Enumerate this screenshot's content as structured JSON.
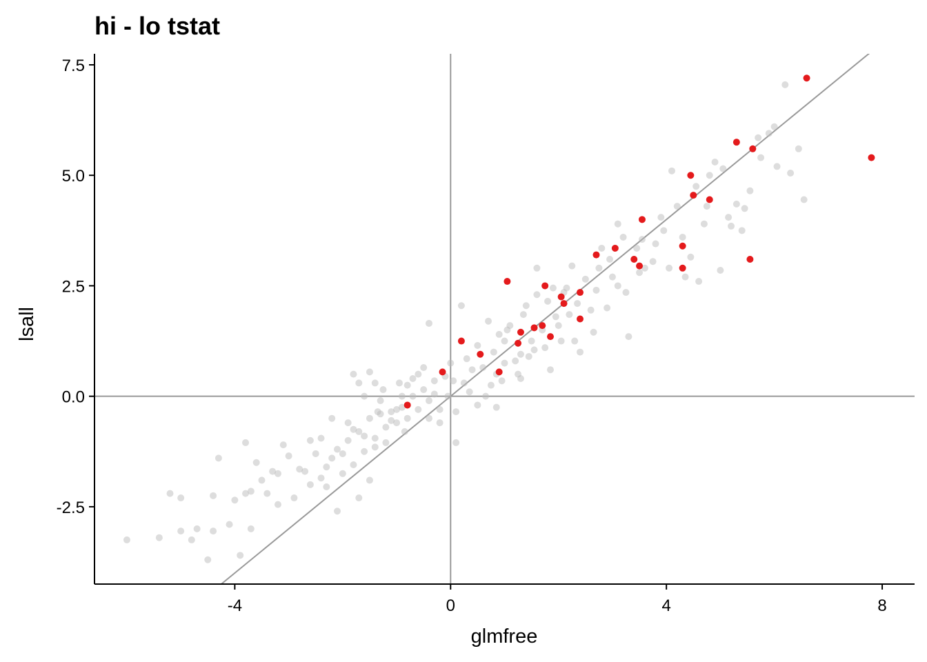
{
  "chart_data": {
    "type": "scatter",
    "title": "hi - lo tstat",
    "xlabel": "glmfree",
    "ylabel": "lsall",
    "xlim": [
      -6.6,
      8.6
    ],
    "ylim": [
      -4.25,
      7.75
    ],
    "x_ticks": [
      -4,
      0,
      4,
      8
    ],
    "x_tick_labels": [
      "-4",
      "0",
      "4",
      "8"
    ],
    "y_ticks": [
      -2.5,
      0.0,
      2.5,
      5.0,
      7.5
    ],
    "y_tick_labels": [
      "-2.5",
      "0.0",
      "2.5",
      "5.0",
      "7.5"
    ],
    "grid": false,
    "reference_lines": [
      {
        "type": "vertical",
        "x": 0,
        "color": "#999999"
      },
      {
        "type": "horizontal",
        "y": 0,
        "color": "#999999"
      },
      {
        "type": "identity",
        "slope": 1,
        "intercept": 0,
        "color": "#999999"
      }
    ],
    "series": [
      {
        "color": "#bbbbbb",
        "opacity": 0.5,
        "points": [
          [
            -6.0,
            -3.25
          ],
          [
            -5.4,
            -3.2
          ],
          [
            -5.2,
            -2.2
          ],
          [
            -5.0,
            -2.3
          ],
          [
            -5.0,
            -3.05
          ],
          [
            -4.8,
            -3.25
          ],
          [
            -4.7,
            -3.0
          ],
          [
            -4.5,
            -3.7
          ],
          [
            -4.4,
            -2.25
          ],
          [
            -4.4,
            -3.05
          ],
          [
            -4.3,
            -1.4
          ],
          [
            -4.1,
            -2.9
          ],
          [
            -4.0,
            -2.35
          ],
          [
            -3.9,
            -3.6
          ],
          [
            -3.8,
            -1.05
          ],
          [
            -3.8,
            -2.2
          ],
          [
            -3.7,
            -2.15
          ],
          [
            -3.7,
            -3.0
          ],
          [
            -3.6,
            -1.5
          ],
          [
            -3.5,
            -1.9
          ],
          [
            -3.4,
            -2.2
          ],
          [
            -3.3,
            -1.7
          ],
          [
            -3.2,
            -1.75
          ],
          [
            -3.2,
            -2.45
          ],
          [
            -3.1,
            -1.1
          ],
          [
            -3.0,
            -1.35
          ],
          [
            -2.9,
            -2.3
          ],
          [
            -2.8,
            -1.65
          ],
          [
            -2.7,
            -1.7
          ],
          [
            -2.6,
            -1.0
          ],
          [
            -2.6,
            -2.0
          ],
          [
            -2.5,
            -1.3
          ],
          [
            -2.4,
            -0.95
          ],
          [
            -2.4,
            -1.85
          ],
          [
            -2.3,
            -1.6
          ],
          [
            -2.3,
            -2.05
          ],
          [
            -2.2,
            -0.5
          ],
          [
            -2.2,
            -1.4
          ],
          [
            -2.1,
            -1.2
          ],
          [
            -2.1,
            -2.6
          ],
          [
            -2.0,
            -1.3
          ],
          [
            -2.0,
            -1.75
          ],
          [
            -1.9,
            -0.6
          ],
          [
            -1.9,
            -1.0
          ],
          [
            -1.8,
            -0.75
          ],
          [
            -1.8,
            -1.55
          ],
          [
            -1.7,
            -0.8
          ],
          [
            -1.7,
            -2.3
          ],
          [
            -1.6,
            -0.9
          ],
          [
            -1.6,
            -1.25
          ],
          [
            -1.5,
            -0.5
          ],
          [
            -1.5,
            -1.9
          ],
          [
            -1.4,
            -0.95
          ],
          [
            -1.4,
            -1.15
          ],
          [
            -1.8,
            0.5
          ],
          [
            -1.7,
            0.3
          ],
          [
            -1.6,
            0.0
          ],
          [
            -1.5,
            0.55
          ],
          [
            -1.4,
            0.3
          ],
          [
            -1.3,
            -0.1
          ],
          [
            -1.3,
            -0.4
          ],
          [
            -1.2,
            -0.7
          ],
          [
            -1.2,
            -1.05
          ],
          [
            -1.1,
            -0.35
          ],
          [
            -1.1,
            -0.55
          ],
          [
            -1.0,
            -0.3
          ],
          [
            -1.0,
            -0.6
          ],
          [
            -0.9,
            0.0
          ],
          [
            -0.9,
            -0.25
          ],
          [
            -0.85,
            -0.8
          ],
          [
            -0.8,
            0.25
          ],
          [
            -0.8,
            -0.5
          ],
          [
            -0.7,
            0.4
          ],
          [
            -0.7,
            0.0
          ],
          [
            -0.6,
            0.5
          ],
          [
            -0.6,
            -0.3
          ],
          [
            -0.5,
            0.65
          ],
          [
            -0.5,
            0.15
          ],
          [
            -0.4,
            -0.1
          ],
          [
            -0.4,
            -0.5
          ],
          [
            -0.3,
            0.35
          ],
          [
            -0.3,
            0.05
          ],
          [
            -0.2,
            -0.3
          ],
          [
            -0.2,
            -0.6
          ],
          [
            -0.1,
            0.45
          ],
          [
            -0.05,
            0.0
          ],
          [
            0.0,
            0.75
          ],
          [
            0.05,
            0.35
          ],
          [
            0.1,
            -0.35
          ],
          [
            0.1,
            -1.05
          ],
          [
            -0.4,
            1.65
          ],
          [
            0.2,
            2.05
          ],
          [
            0.25,
            0.3
          ],
          [
            0.3,
            0.85
          ],
          [
            0.4,
            0.6
          ],
          [
            0.5,
            1.15
          ],
          [
            0.5,
            -0.2
          ],
          [
            0.6,
            0.65
          ],
          [
            0.65,
            0.0
          ],
          [
            0.7,
            1.7
          ],
          [
            0.75,
            0.25
          ],
          [
            0.8,
            1.0
          ],
          [
            0.85,
            0.5
          ],
          [
            0.85,
            -0.25
          ],
          [
            0.9,
            1.4
          ],
          [
            1.0,
            1.25
          ],
          [
            1.0,
            0.75
          ],
          [
            1.05,
            1.5
          ],
          [
            1.1,
            1.6
          ],
          [
            1.2,
            0.8
          ],
          [
            1.25,
            0.5
          ],
          [
            1.3,
            0.95
          ],
          [
            1.35,
            1.85
          ],
          [
            1.4,
            2.05
          ],
          [
            1.45,
            0.9
          ],
          [
            1.5,
            1.25
          ],
          [
            1.6,
            2.3
          ],
          [
            1.6,
            2.9
          ],
          [
            1.7,
            1.5
          ],
          [
            1.75,
            1.1
          ],
          [
            1.8,
            2.15
          ],
          [
            1.85,
            0.6
          ],
          [
            1.9,
            2.45
          ],
          [
            2.0,
            1.6
          ],
          [
            2.05,
            1.25
          ],
          [
            2.1,
            2.35
          ],
          [
            2.2,
            1.85
          ],
          [
            2.25,
            2.95
          ],
          [
            2.3,
            1.25
          ],
          [
            2.35,
            2.1
          ],
          [
            2.4,
            1.0
          ],
          [
            2.5,
            2.65
          ],
          [
            2.6,
            1.95
          ],
          [
            2.65,
            1.45
          ],
          [
            2.7,
            2.4
          ],
          [
            2.8,
            3.35
          ],
          [
            2.9,
            2.0
          ],
          [
            2.95,
            3.1
          ],
          [
            3.0,
            2.7
          ],
          [
            3.1,
            3.9
          ],
          [
            3.1,
            2.5
          ],
          [
            3.2,
            3.6
          ],
          [
            3.25,
            2.35
          ],
          [
            3.3,
            1.35
          ],
          [
            3.4,
            3.1
          ],
          [
            3.5,
            2.8
          ],
          [
            3.55,
            3.55
          ],
          [
            3.6,
            2.9
          ],
          [
            3.75,
            3.05
          ],
          [
            3.8,
            3.45
          ],
          [
            3.9,
            4.05
          ],
          [
            3.95,
            3.75
          ],
          [
            4.05,
            2.9
          ],
          [
            4.1,
            5.1
          ],
          [
            4.2,
            4.3
          ],
          [
            4.3,
            3.6
          ],
          [
            4.35,
            2.7
          ],
          [
            4.45,
            3.15
          ],
          [
            4.55,
            4.75
          ],
          [
            4.6,
            2.6
          ],
          [
            4.7,
            3.9
          ],
          [
            4.75,
            4.3
          ],
          [
            4.8,
            5.0
          ],
          [
            4.9,
            5.3
          ],
          [
            5.0,
            2.85
          ],
          [
            5.05,
            5.15
          ],
          [
            5.15,
            4.05
          ],
          [
            5.2,
            3.85
          ],
          [
            5.3,
            4.35
          ],
          [
            5.4,
            3.75
          ],
          [
            5.45,
            4.25
          ],
          [
            5.55,
            4.65
          ],
          [
            5.7,
            5.85
          ],
          [
            5.75,
            5.4
          ],
          [
            5.9,
            5.95
          ],
          [
            6.0,
            6.1
          ],
          [
            6.2,
            7.05
          ],
          [
            6.3,
            5.05
          ],
          [
            6.45,
            5.6
          ],
          [
            6.55,
            4.45
          ],
          [
            6.05,
            5.2
          ],
          [
            -1.35,
            -0.35
          ],
          [
            -1.25,
            0.15
          ],
          [
            -0.95,
            0.3
          ],
          [
            0.35,
            0.1
          ],
          [
            0.95,
            0.35
          ],
          [
            1.3,
            0.4
          ],
          [
            1.55,
            1.05
          ],
          [
            1.95,
            1.8
          ],
          [
            2.15,
            2.45
          ],
          [
            2.75,
            2.9
          ],
          [
            3.45,
            3.35
          ]
        ]
      },
      {
        "color": "#e41a1c",
        "opacity": 1,
        "points": [
          [
            -0.8,
            -0.2
          ],
          [
            -0.15,
            0.55
          ],
          [
            0.2,
            1.25
          ],
          [
            0.55,
            0.95
          ],
          [
            0.9,
            0.55
          ],
          [
            1.05,
            2.6
          ],
          [
            1.25,
            1.2
          ],
          [
            1.3,
            1.45
          ],
          [
            1.55,
            1.55
          ],
          [
            1.7,
            1.6
          ],
          [
            1.75,
            2.5
          ],
          [
            1.85,
            1.35
          ],
          [
            2.05,
            2.25
          ],
          [
            2.1,
            2.1
          ],
          [
            2.4,
            2.35
          ],
          [
            2.4,
            1.75
          ],
          [
            2.7,
            3.2
          ],
          [
            3.05,
            3.35
          ],
          [
            3.4,
            3.1
          ],
          [
            3.5,
            2.95
          ],
          [
            3.55,
            4.0
          ],
          [
            4.3,
            3.4
          ],
          [
            4.3,
            2.9
          ],
          [
            4.45,
            5.0
          ],
          [
            4.5,
            4.55
          ],
          [
            4.8,
            4.45
          ],
          [
            5.3,
            5.75
          ],
          [
            5.55,
            3.1
          ],
          [
            5.6,
            5.6
          ],
          [
            6.6,
            7.2
          ],
          [
            7.8,
            5.4
          ]
        ]
      }
    ]
  }
}
